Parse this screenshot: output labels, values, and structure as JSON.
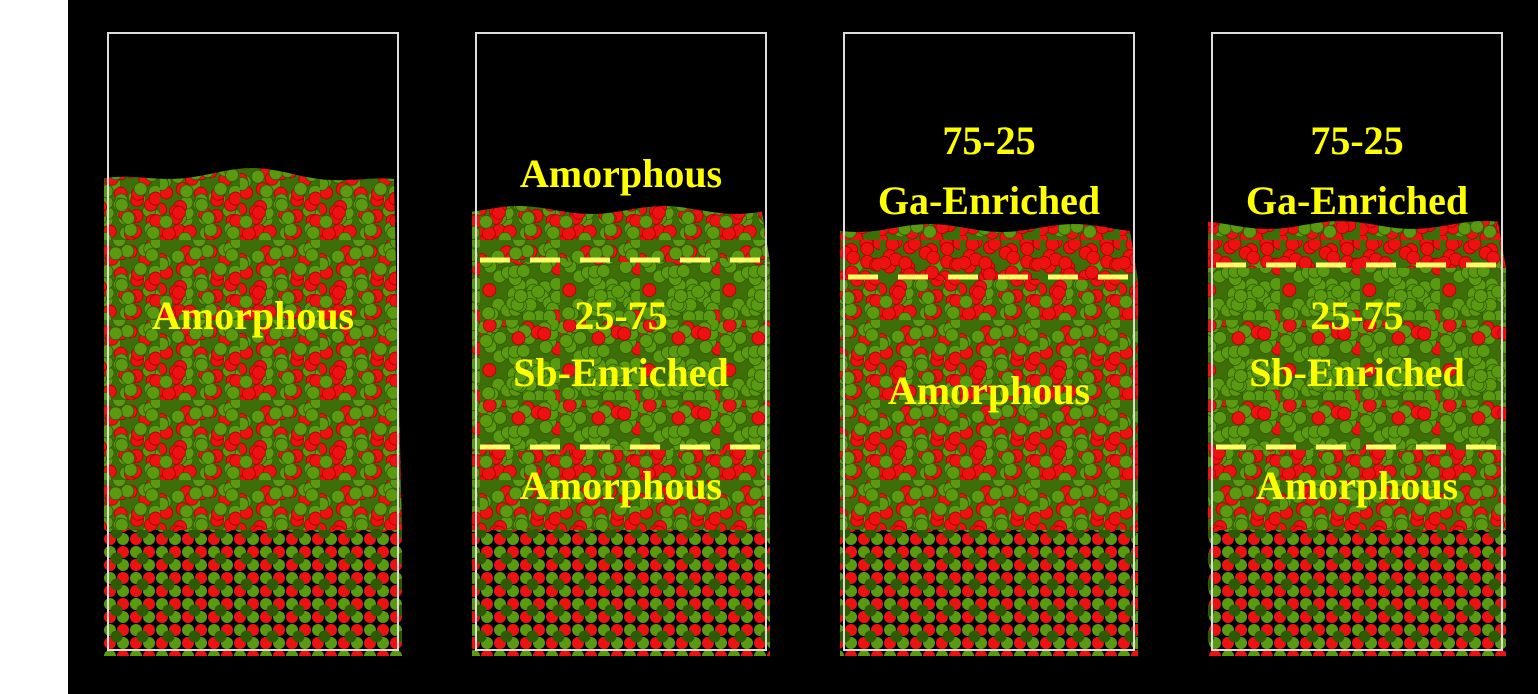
{
  "panels": [
    {
      "labels": [
        "Amorphous"
      ]
    },
    {
      "labels": [
        "Amorphous",
        "25-75",
        "Sb-Enriched",
        "Amorphous"
      ]
    },
    {
      "labels": [
        "75-25",
        "Ga-Enriched",
        "Amorphous"
      ]
    },
    {
      "labels": [
        "75-25",
        "Ga-Enriched",
        "25-75",
        "Sb-Enriched",
        "Amorphous"
      ]
    }
  ]
}
